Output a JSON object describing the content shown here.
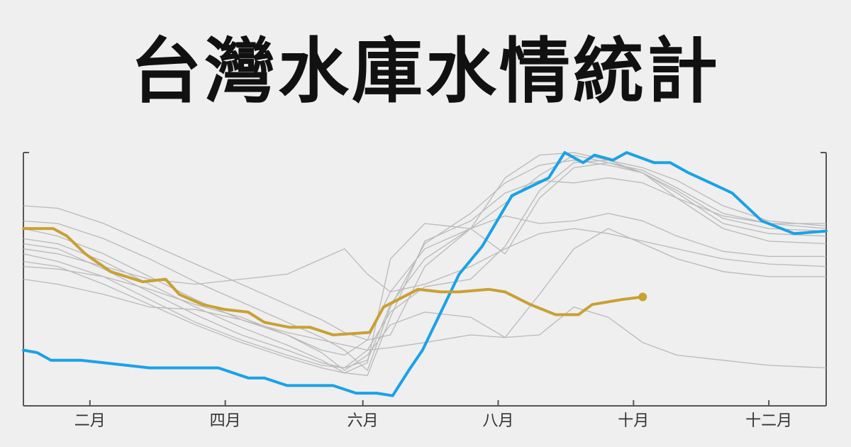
{
  "chart_data": {
    "type": "line",
    "title": "台灣水庫水情統計",
    "xlabel": "",
    "ylabel": "",
    "x_unit": "day-of-year",
    "xlim": [
      15,
      365
    ],
    "ylim": [
      0,
      100
    ],
    "x_ticks": [
      {
        "x": 44,
        "label": "二月"
      },
      {
        "x": 103,
        "label": "四月"
      },
      {
        "x": 163,
        "label": "六月"
      },
      {
        "x": 222,
        "label": "八月"
      },
      {
        "x": 281,
        "label": "十月"
      },
      {
        "x": 340,
        "label": "十二月"
      }
    ],
    "y_tick_labels": false,
    "grid": false,
    "colors": {
      "background": "#efefef",
      "axis": "#555555",
      "history": "#b9b9b9",
      "highlight_blue": "#1aa2e6",
      "highlight_gold": "#c9a033"
    },
    "history_series": [
      {
        "x": [
          15,
          30,
          50,
          70,
          90,
          110,
          130,
          145,
          155,
          165,
          175,
          190,
          210,
          225,
          240,
          255,
          270,
          285,
          300,
          320,
          340,
          365
        ],
        "y": [
          79,
          78,
          72,
          64,
          56,
          48,
          40,
          34,
          29,
          26,
          28,
          55,
          70,
          90,
          99,
          100,
          97,
          94,
          89,
          79,
          73,
          71
        ]
      },
      {
        "x": [
          15,
          30,
          50,
          70,
          90,
          110,
          130,
          145,
          155,
          165,
          175,
          190,
          210,
          225,
          240,
          255,
          270,
          285,
          300,
          320,
          340,
          365
        ],
        "y": [
          73,
          72,
          66,
          58,
          49,
          41,
          33,
          27,
          22,
          14,
          39,
          64,
          76,
          88,
          95,
          97,
          95,
          92,
          84,
          72,
          68,
          67
        ]
      },
      {
        "x": [
          15,
          30,
          50,
          70,
          90,
          110,
          130,
          145,
          155,
          165,
          175,
          190,
          210,
          225,
          240,
          255,
          270,
          285,
          300,
          320,
          340,
          365
        ],
        "y": [
          66,
          64,
          57,
          48,
          39,
          31,
          24,
          18,
          13,
          17,
          58,
          72,
          70,
          60,
          82,
          94,
          96,
          93,
          86,
          76,
          72,
          70
        ]
      },
      {
        "x": [
          15,
          30,
          50,
          70,
          90,
          110,
          130,
          145,
          155,
          165,
          175,
          190,
          210,
          225,
          240,
          255,
          270,
          285,
          300,
          320,
          340,
          365
        ],
        "y": [
          64,
          62,
          54,
          45,
          36,
          28,
          22,
          17,
          15,
          22,
          37,
          47,
          50,
          63,
          85,
          96,
          97,
          92,
          85,
          74,
          70,
          69
        ]
      },
      {
        "x": [
          15,
          30,
          50,
          70,
          90,
          110,
          130,
          145,
          155,
          165,
          175,
          190,
          210,
          225,
          240,
          255,
          270,
          285,
          300,
          320,
          340,
          365
        ],
        "y": [
          70,
          67,
          60,
          51,
          42,
          34,
          28,
          22,
          20,
          26,
          45,
          62,
          70,
          80,
          91,
          99,
          96,
          92,
          82,
          70,
          65,
          64
        ]
      },
      {
        "x": [
          15,
          30,
          50,
          70,
          90,
          110,
          130,
          145,
          155,
          165,
          175,
          190,
          210,
          225,
          240,
          255,
          270,
          285,
          300,
          320,
          340,
          365
        ],
        "y": [
          55,
          54,
          51,
          46,
          40,
          35,
          28,
          21,
          14,
          20,
          32,
          37,
          35,
          27,
          28,
          39,
          35,
          25,
          20,
          18,
          16,
          15
        ]
      },
      {
        "x": [
          15,
          30,
          50,
          70,
          90,
          110,
          130,
          145,
          155,
          165,
          175,
          190,
          210,
          225,
          240,
          255,
          270,
          285,
          300,
          320,
          340,
          365
        ],
        "y": [
          50,
          48,
          44,
          39,
          38,
          34,
          29,
          26,
          24,
          22,
          23,
          25,
          28,
          27,
          44,
          62,
          70,
          64,
          58,
          53,
          51,
          51
        ]
      },
      {
        "x": [
          15,
          30,
          50,
          70,
          90,
          110,
          130,
          145,
          155,
          165,
          175,
          190,
          210,
          225,
          240,
          255,
          270,
          285,
          300,
          320,
          340,
          365
        ],
        "y": [
          62,
          60,
          55,
          50,
          48,
          50,
          52,
          58,
          62,
          52,
          45,
          48,
          55,
          62,
          68,
          70,
          68,
          65,
          62,
          58,
          56,
          55
        ]
      },
      {
        "x": [
          15,
          30,
          50,
          70,
          90,
          110,
          130,
          145,
          155,
          165,
          175,
          190,
          210,
          225,
          240,
          255,
          270,
          285,
          300,
          320,
          340,
          365
        ],
        "y": [
          57,
          55,
          48,
          40,
          32,
          25,
          19,
          15,
          13,
          12,
          35,
          65,
          73,
          84,
          89,
          88,
          90,
          88,
          82,
          75,
          72,
          72
        ]
      },
      {
        "x": [
          15,
          30,
          50,
          70,
          90,
          110,
          130,
          145,
          155,
          165,
          175,
          190,
          210,
          225,
          240,
          255,
          270,
          285,
          300,
          320,
          340,
          365
        ],
        "y": [
          60,
          57,
          51,
          42,
          33,
          26,
          20,
          16,
          15,
          18,
          40,
          58,
          70,
          75,
          72,
          73,
          76,
          73,
          67,
          61,
          59,
          59
        ]
      }
    ],
    "series": [
      {
        "color": "#1aa2e6",
        "x": [
          15,
          21,
          27,
          40,
          70,
          90,
          100,
          113,
          120,
          130,
          150,
          160,
          162,
          169,
          176,
          183,
          189,
          205,
          215,
          228,
          244,
          251,
          259,
          264,
          272,
          278,
          290,
          297,
          305,
          317,
          324,
          337,
          351,
          365
        ],
        "y": [
          22,
          21,
          18,
          18,
          15,
          15,
          15,
          11,
          11,
          8,
          8,
          5,
          5,
          5,
          4,
          14,
          22,
          52,
          63,
          83,
          90,
          100,
          96,
          99,
          97,
          100,
          96,
          96,
          92,
          87,
          84,
          73,
          68,
          69
        ],
        "points": false
      },
      {
        "color": "#c9a033",
        "x": [
          15,
          28,
          34,
          42,
          53,
          67,
          77,
          83,
          93,
          103,
          113,
          120,
          131,
          140,
          150,
          166,
          172,
          187,
          197,
          205,
          218,
          225,
          236,
          247,
          257,
          263,
          276,
          285
        ],
        "y": [
          70,
          70,
          67,
          60,
          53,
          49,
          50,
          44,
          40,
          38,
          37,
          33,
          31,
          31,
          28,
          29,
          39,
          46,
          45,
          45,
          46,
          45,
          40,
          36,
          36,
          40,
          42,
          43
        ],
        "end_marker": true
      }
    ]
  }
}
